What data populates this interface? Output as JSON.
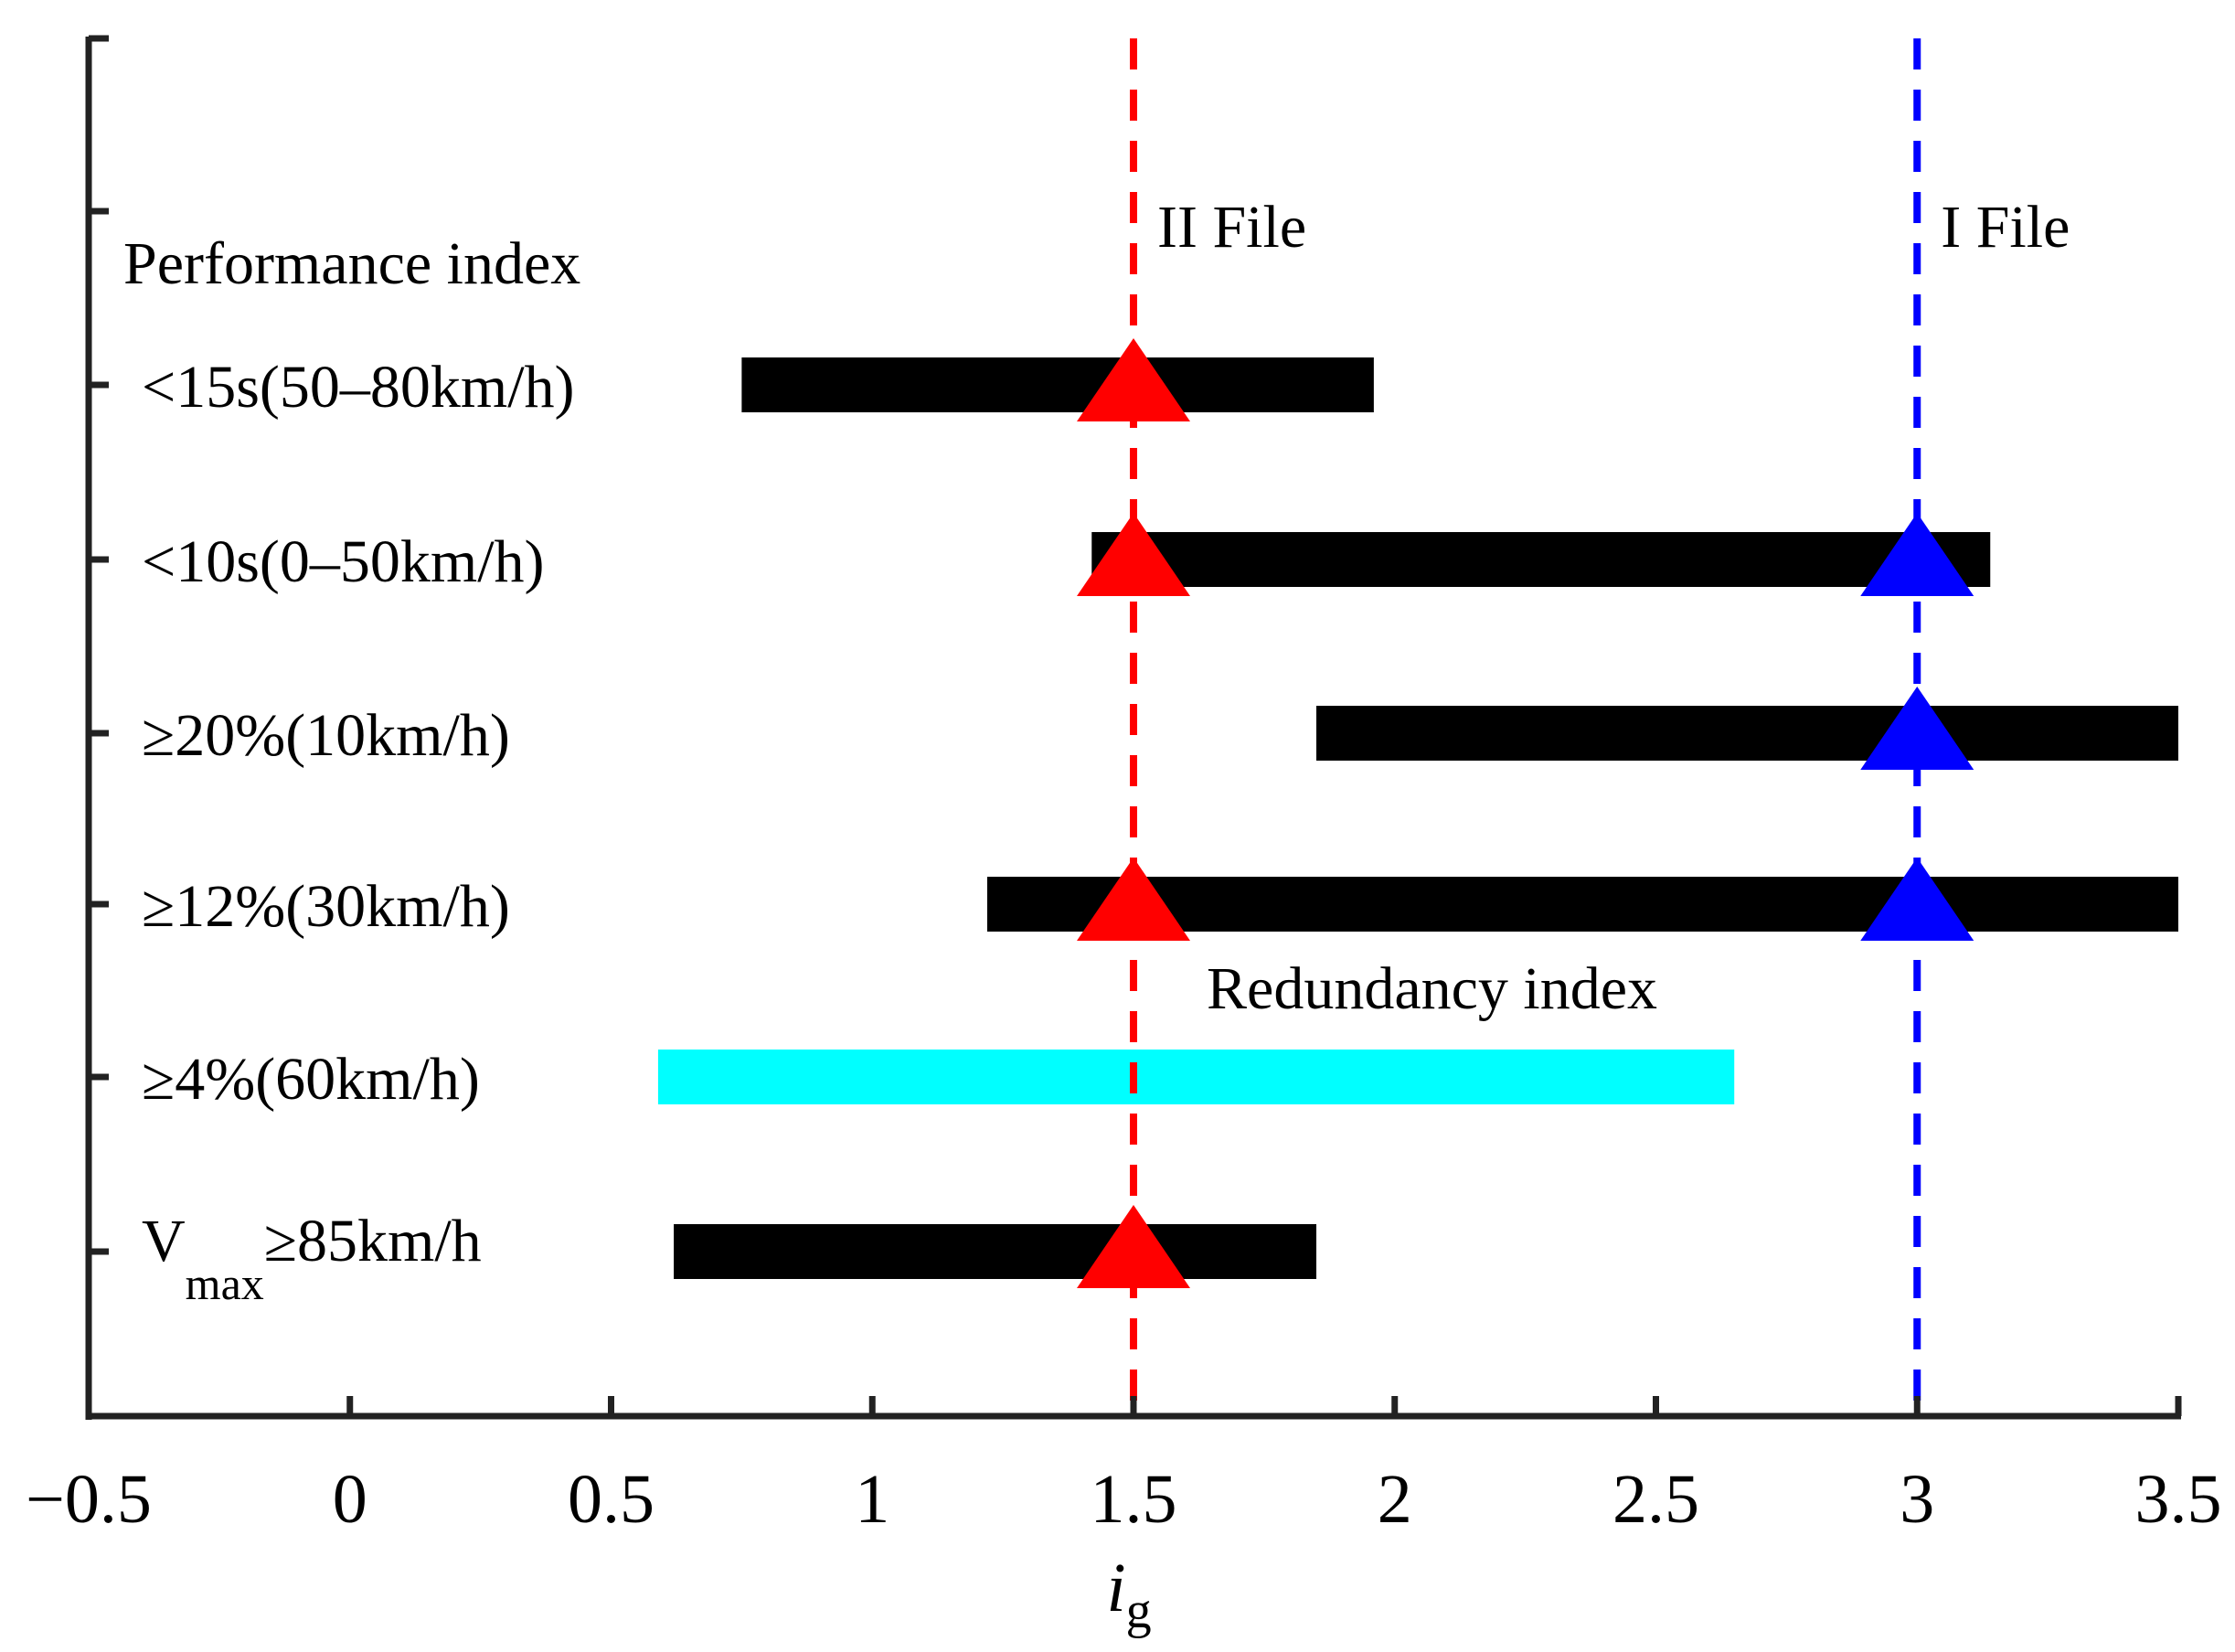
{
  "chart_data": {
    "type": "horizontal-range-bar",
    "title": "",
    "xlabel": {
      "main": "i",
      "sub": "g"
    },
    "ylabel": "",
    "xlim": [
      -0.5,
      3.5
    ],
    "xticks": [
      -0.5,
      0,
      0.5,
      1,
      1.5,
      2,
      2.5,
      3,
      3.5
    ],
    "xtick_labels": [
      "−0.5",
      "0",
      "0.5",
      "1",
      "1.5",
      "2",
      "2.5",
      "3",
      "3.5"
    ],
    "y_tick_count": 8,
    "header": "Performance index",
    "categories": [
      {
        "label": "<15s(50–80km/h)",
        "start": 0.75,
        "end": 1.96,
        "color": "#000000"
      },
      {
        "label": "<10s(0–50km/h)",
        "start": 1.42,
        "end": 3.14,
        "color": "#000000"
      },
      {
        "label": "≥20%(10km/h)",
        "start": 1.85,
        "end": 3.5,
        "color": "#000000"
      },
      {
        "label": "≥12%(30km/h)",
        "start": 1.22,
        "end": 3.5,
        "color": "#000000"
      },
      {
        "label": "≥4%(60km/h)",
        "start": 0.59,
        "end": 2.65,
        "color": "#00ffff",
        "annotation": "Redundancy index"
      },
      {
        "label_main": "V",
        "label_sub": "max",
        "label_rest": "≥85km/h",
        "start": 0.62,
        "end": 1.85,
        "color": "#000000"
      }
    ],
    "reference_lines": [
      {
        "name": "II File",
        "x": 1.5,
        "color": "#ff0000"
      },
      {
        "name": "I File",
        "x": 3.0,
        "color": "#0000ff"
      }
    ],
    "markers": [
      {
        "category_index": 0,
        "x": 1.5,
        "color": "#ff0000"
      },
      {
        "category_index": 1,
        "x": 1.5,
        "color": "#ff0000"
      },
      {
        "category_index": 1,
        "x": 3.0,
        "color": "#0000ff"
      },
      {
        "category_index": 2,
        "x": 3.0,
        "color": "#0000ff"
      },
      {
        "category_index": 3,
        "x": 1.5,
        "color": "#ff0000"
      },
      {
        "category_index": 3,
        "x": 3.0,
        "color": "#0000ff"
      },
      {
        "category_index": 5,
        "x": 1.5,
        "color": "#ff0000"
      }
    ]
  }
}
